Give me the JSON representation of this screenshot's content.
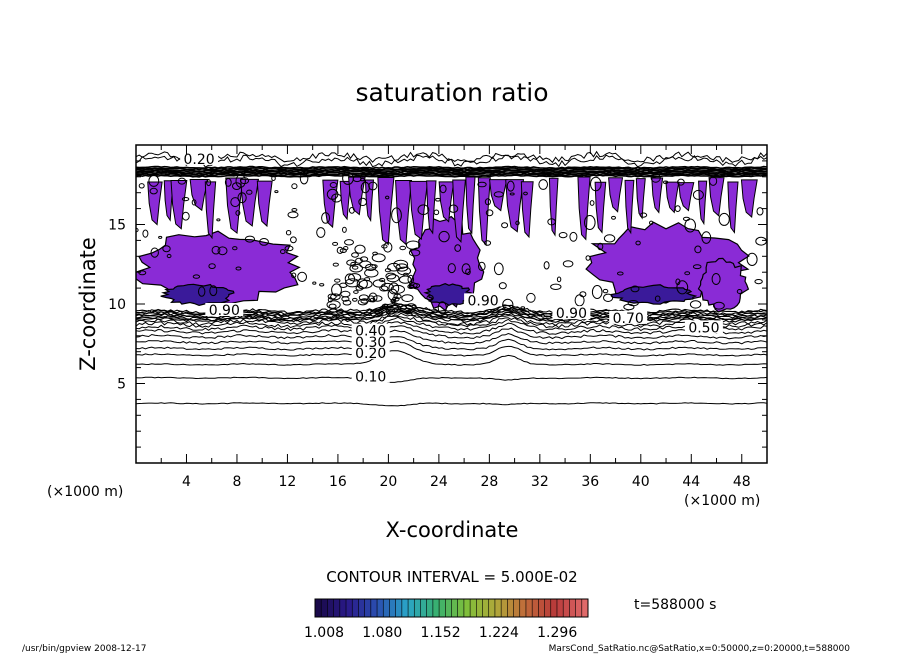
{
  "chart_data": {
    "type": "heatmap",
    "title": "saturation ratio",
    "xlabel": "X-coordinate",
    "ylabel": "Z-coordinate",
    "x_unit_left": "(×1000 m)",
    "x_unit_right": "(×1000 m)",
    "xlim": [
      0,
      50
    ],
    "ylim": [
      0,
      20
    ],
    "xticks": [
      4,
      8,
      12,
      16,
      20,
      24,
      28,
      32,
      36,
      40,
      44,
      48
    ],
    "yticks": [
      5,
      10,
      15
    ],
    "grid": false,
    "contour_interval_text": "CONTOUR INTERVAL = 5.000E-02",
    "contour_labels": [
      {
        "text": "0.10",
        "x": 18.6,
        "z": 5.3
      },
      {
        "text": "0.20",
        "x": 18.6,
        "z": 6.8
      },
      {
        "text": "0.30",
        "x": 18.6,
        "z": 7.5
      },
      {
        "text": "0.40",
        "x": 18.6,
        "z": 8.2
      },
      {
        "text": "0.50",
        "x": 45.0,
        "z": 8.4
      },
      {
        "text": "0.70",
        "x": 39.0,
        "z": 9.0
      },
      {
        "text": "0.90",
        "x": 34.5,
        "z": 9.3
      },
      {
        "text": "0.90",
        "x": 7.0,
        "z": 9.5
      },
      {
        "text": "0.90",
        "x": 27.5,
        "z": 10.1
      },
      {
        "text": "0.20",
        "x": 5.0,
        "z": 19.0
      }
    ],
    "colorbar": {
      "labels": [
        "1.008",
        "1.080",
        "1.152",
        "1.224",
        "1.296"
      ],
      "colors": [
        "#1a0a4a",
        "#2a1a8a",
        "#2a4fb0",
        "#2aa4c8",
        "#38b070",
        "#7fbf3a",
        "#b0a83a",
        "#c06a3a",
        "#b83a3a",
        "#e06a6a"
      ]
    },
    "time_label": "t=588000 s",
    "fill_color": "#8a2bd6",
    "fill_dark_color": "#3a1a9a"
  },
  "footer": {
    "left": "/usr/bin/gpview   2008-12-17",
    "right": "MarsCond_SatRatio.nc@SatRatio,x=0:50000,z=0:20000,t=588000"
  }
}
